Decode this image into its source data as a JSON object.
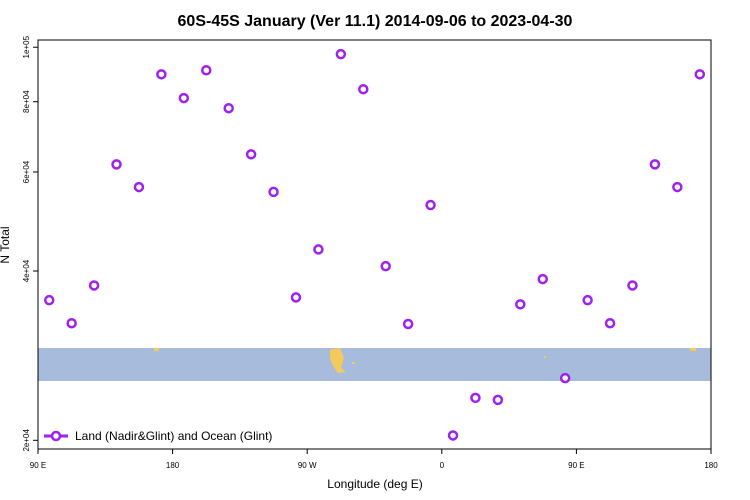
{
  "chart_data": {
    "type": "scatter",
    "title": "60S-45S January (Ver 11.1)   2014-09-06 to 2023-04-30",
    "x_label": "Longitude (deg E)",
    "y_label": "N Total",
    "log_y": true,
    "legend_position": "bottom-left",
    "xlim": [
      90,
      540
    ],
    "xticks": [
      {
        "value": 90,
        "label": "90 E"
      },
      180,
      {
        "value": 270,
        "label": "90 W"
      },
      {
        "value": 360,
        "label": "0"
      },
      {
        "value": 450,
        "label": "90 E"
      },
      {
        "value": 540,
        "label": "180"
      }
    ],
    "ylim": [
      19300,
      103000
    ],
    "yticks": [
      {
        "value": 20000,
        "label": "2e+04"
      },
      {
        "value": 40000,
        "label": "4e+04"
      },
      {
        "value": 60000,
        "label": "6e+04"
      },
      {
        "value": 80000,
        "label": "8e+04"
      },
      {
        "value": 100000,
        "label": "1e+05"
      }
    ],
    "series": [
      {
        "name": "Land (Nadir&Glint) and Ocean (Glint)",
        "color": "#a020f0",
        "x": [
          97.5,
          112.5,
          127.5,
          142.5,
          157.5,
          172.5,
          187.5,
          202.5,
          217.5,
          232.5,
          247.5,
          262.5,
          277.5,
          292.5,
          307.5,
          322.5,
          337.5,
          352.5,
          367.5,
          382.5,
          397.5,
          412.5,
          427.5,
          442.5,
          457.5,
          472.5,
          487.5,
          502.5,
          517.5,
          532.5
        ],
        "values": [
          35500,
          32300,
          37700,
          61900,
          56400,
          89500,
          81200,
          91000,
          77900,
          64500,
          55300,
          35900,
          43700,
          97200,
          84200,
          40800,
          32200,
          52400,
          20400,
          23800,
          23600,
          34900,
          38700,
          25800,
          35500,
          32300,
          37700,
          61900,
          56400,
          89500
        ]
      }
    ]
  }
}
